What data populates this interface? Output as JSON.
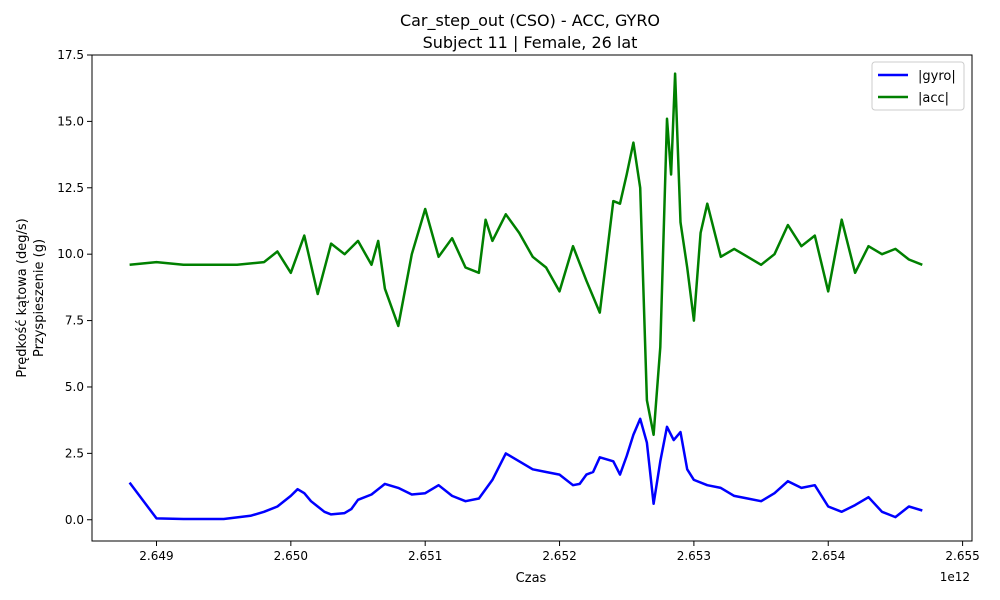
{
  "chart_data": {
    "type": "line",
    "title": "Car_step_out (CSO) - ACC, GYRO",
    "subtitle": "Subject 11 | Female, 26 lat",
    "xlabel": "Czas",
    "ylabel_line1": "Prędkość kątowa (deg/s)",
    "ylabel_line2": "Przyspieszenie (g)",
    "x_offset_label": "1e12",
    "xlim": [
      2.64852,
      2.65507
    ],
    "ylim": [
      -0.8,
      17.5
    ],
    "x_ticks": [
      2.649,
      2.65,
      2.651,
      2.652,
      2.653,
      2.654,
      2.655
    ],
    "x_tick_labels": [
      "2.649",
      "2.650",
      "2.651",
      "2.652",
      "2.653",
      "2.654",
      "2.655"
    ],
    "y_ticks": [
      0.0,
      2.5,
      5.0,
      7.5,
      10.0,
      12.5,
      15.0,
      17.5
    ],
    "y_tick_labels": [
      "0.0",
      "2.5",
      "5.0",
      "7.5",
      "10.0",
      "12.5",
      "15.0",
      "17.5"
    ],
    "legend_position": "top-right",
    "series": [
      {
        "name": "|gyro|",
        "color": "#0000ff",
        "x": [
          2.6488,
          2.649,
          2.6492,
          2.6495,
          2.6497,
          2.6498,
          2.6499,
          2.65,
          2.65005,
          2.6501,
          2.65015,
          2.6502,
          2.65025,
          2.6503,
          2.6504,
          2.65045,
          2.6505,
          2.6506,
          2.6507,
          2.6508,
          2.6509,
          2.651,
          2.6511,
          2.6512,
          2.6513,
          2.6514,
          2.6515,
          2.6516,
          2.6517,
          2.6518,
          2.6519,
          2.652,
          2.6521,
          2.65215,
          2.6522,
          2.65225,
          2.6523,
          2.6524,
          2.65245,
          2.6525,
          2.65255,
          2.6526,
          2.65265,
          2.6527,
          2.65275,
          2.6528,
          2.65285,
          2.6529,
          2.65295,
          2.653,
          2.6531,
          2.6532,
          2.6533,
          2.6534,
          2.6535,
          2.6536,
          2.6537,
          2.6538,
          2.6539,
          2.654,
          2.6541,
          2.6542,
          2.6543,
          2.6544,
          2.6545,
          2.6546,
          2.6547
        ],
        "values": [
          1.4,
          0.05,
          0.03,
          0.03,
          0.15,
          0.3,
          0.5,
          0.9,
          1.15,
          1.0,
          0.7,
          0.5,
          0.3,
          0.2,
          0.25,
          0.4,
          0.75,
          0.95,
          1.35,
          1.2,
          0.95,
          1.0,
          1.3,
          0.9,
          0.7,
          0.8,
          1.5,
          2.5,
          2.2,
          1.9,
          1.8,
          1.7,
          1.3,
          1.35,
          1.7,
          1.8,
          2.35,
          2.2,
          1.7,
          2.4,
          3.2,
          3.8,
          2.9,
          0.6,
          2.2,
          3.5,
          3.0,
          3.3,
          1.9,
          1.5,
          1.3,
          1.2,
          0.9,
          0.8,
          0.7,
          1.0,
          1.45,
          1.2,
          1.3,
          0.5,
          0.3,
          0.55,
          0.85,
          0.3,
          0.1,
          0.5,
          0.35
        ]
      },
      {
        "name": "|acc|",
        "color": "#008000",
        "x": [
          2.6488,
          2.649,
          2.6492,
          2.6494,
          2.6496,
          2.6498,
          2.6499,
          2.65,
          2.6501,
          2.6502,
          2.6503,
          2.6504,
          2.6505,
          2.6506,
          2.65065,
          2.6507,
          2.6508,
          2.6509,
          2.651,
          2.6511,
          2.6512,
          2.6513,
          2.6514,
          2.65145,
          2.6515,
          2.6516,
          2.6517,
          2.6518,
          2.6519,
          2.652,
          2.6521,
          2.6522,
          2.6523,
          2.6524,
          2.65245,
          2.6525,
          2.65255,
          2.6526,
          2.65265,
          2.6527,
          2.65275,
          2.6528,
          2.65283,
          2.65286,
          2.6529,
          2.65295,
          2.653,
          2.65305,
          2.6531,
          2.6532,
          2.6533,
          2.6534,
          2.6535,
          2.6536,
          2.6537,
          2.6538,
          2.6539,
          2.654,
          2.6541,
          2.6542,
          2.6543,
          2.6544,
          2.6545,
          2.6546,
          2.6547
        ],
        "values": [
          9.6,
          9.7,
          9.6,
          9.6,
          9.6,
          9.7,
          10.1,
          9.3,
          10.7,
          8.5,
          10.4,
          10.0,
          10.5,
          9.6,
          10.5,
          8.7,
          7.3,
          10.0,
          11.7,
          9.9,
          10.6,
          9.5,
          9.3,
          11.3,
          10.5,
          11.5,
          10.8,
          9.9,
          9.5,
          8.6,
          10.3,
          9.0,
          7.8,
          12.0,
          11.9,
          13.0,
          14.2,
          12.5,
          4.5,
          3.2,
          6.5,
          15.1,
          13.0,
          16.8,
          11.2,
          9.5,
          7.5,
          10.8,
          11.9,
          9.9,
          10.2,
          9.9,
          9.6,
          10.0,
          11.1,
          10.3,
          10.7,
          8.6,
          11.3,
          9.3,
          10.3,
          10.0,
          10.2,
          9.8,
          9.6
        ]
      }
    ]
  }
}
